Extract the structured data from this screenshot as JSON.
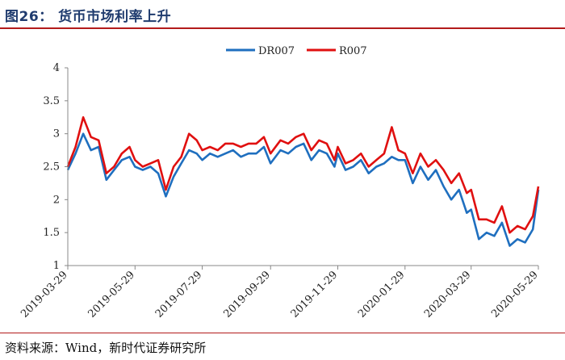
{
  "header": {
    "title": "图26： 货币市场利率上升"
  },
  "footer": {
    "source": "资料来源：Wind，新时代证券研究所"
  },
  "chart_data": {
    "type": "line",
    "title": "",
    "xlabel": "",
    "ylabel": "",
    "ylim": [
      1,
      4
    ],
    "yticks": [
      "1",
      "1.5",
      "2",
      "2.5",
      "3",
      "3.5",
      "4"
    ],
    "xticks": [
      "2019-03-29",
      "2019-05-29",
      "2019-07-29",
      "2019-09-29",
      "2019-11-29",
      "2020-01-29",
      "2020-03-29",
      "2020-05-29"
    ],
    "x": [
      "2019-03-29",
      "2019-04-05",
      "2019-04-12",
      "2019-04-19",
      "2019-04-26",
      "2019-05-03",
      "2019-05-10",
      "2019-05-17",
      "2019-05-24",
      "2019-05-29",
      "2019-06-05",
      "2019-06-12",
      "2019-06-19",
      "2019-06-26",
      "2019-07-03",
      "2019-07-10",
      "2019-07-17",
      "2019-07-24",
      "2019-07-29",
      "2019-08-05",
      "2019-08-12",
      "2019-08-19",
      "2019-08-26",
      "2019-09-02",
      "2019-09-09",
      "2019-09-16",
      "2019-09-23",
      "2019-09-29",
      "2019-10-08",
      "2019-10-15",
      "2019-10-22",
      "2019-10-29",
      "2019-11-05",
      "2019-11-12",
      "2019-11-19",
      "2019-11-26",
      "2019-11-29",
      "2019-12-06",
      "2019-12-13",
      "2019-12-20",
      "2019-12-27",
      "2020-01-03",
      "2020-01-10",
      "2020-01-17",
      "2020-01-23",
      "2020-01-29",
      "2020-02-05",
      "2020-02-12",
      "2020-02-19",
      "2020-02-26",
      "2020-03-04",
      "2020-03-11",
      "2020-03-18",
      "2020-03-25",
      "2020-03-29",
      "2020-04-05",
      "2020-04-12",
      "2020-04-19",
      "2020-04-26",
      "2020-05-03",
      "2020-05-10",
      "2020-05-17",
      "2020-05-24",
      "2020-05-29"
    ],
    "series": [
      {
        "name": "DR007",
        "color": "#1f6fbf",
        "values": [
          2.45,
          2.7,
          3.0,
          2.75,
          2.8,
          2.3,
          2.45,
          2.6,
          2.65,
          2.5,
          2.45,
          2.5,
          2.4,
          2.05,
          2.35,
          2.55,
          2.75,
          2.7,
          2.6,
          2.7,
          2.65,
          2.7,
          2.75,
          2.65,
          2.7,
          2.7,
          2.8,
          2.55,
          2.75,
          2.7,
          2.8,
          2.85,
          2.6,
          2.75,
          2.7,
          2.5,
          2.7,
          2.45,
          2.5,
          2.6,
          2.4,
          2.5,
          2.55,
          2.65,
          2.6,
          2.6,
          2.25,
          2.5,
          2.3,
          2.45,
          2.2,
          2.0,
          2.15,
          1.8,
          1.85,
          1.4,
          1.5,
          1.45,
          1.65,
          1.3,
          1.4,
          1.35,
          1.55,
          2.15
        ]
      },
      {
        "name": "R007",
        "color": "#e01010",
        "values": [
          2.5,
          2.8,
          3.25,
          2.95,
          2.9,
          2.4,
          2.5,
          2.7,
          2.8,
          2.6,
          2.5,
          2.55,
          2.6,
          2.15,
          2.5,
          2.65,
          3.0,
          2.9,
          2.75,
          2.8,
          2.75,
          2.85,
          2.85,
          2.8,
          2.85,
          2.85,
          2.95,
          2.7,
          2.9,
          2.85,
          2.95,
          3.0,
          2.75,
          2.9,
          2.85,
          2.6,
          2.8,
          2.55,
          2.6,
          2.7,
          2.5,
          2.6,
          2.7,
          3.1,
          2.75,
          2.7,
          2.4,
          2.7,
          2.5,
          2.6,
          2.45,
          2.25,
          2.4,
          2.1,
          2.15,
          1.7,
          1.7,
          1.65,
          1.9,
          1.5,
          1.6,
          1.55,
          1.75,
          2.2
        ]
      }
    ],
    "legend": "top-center"
  }
}
